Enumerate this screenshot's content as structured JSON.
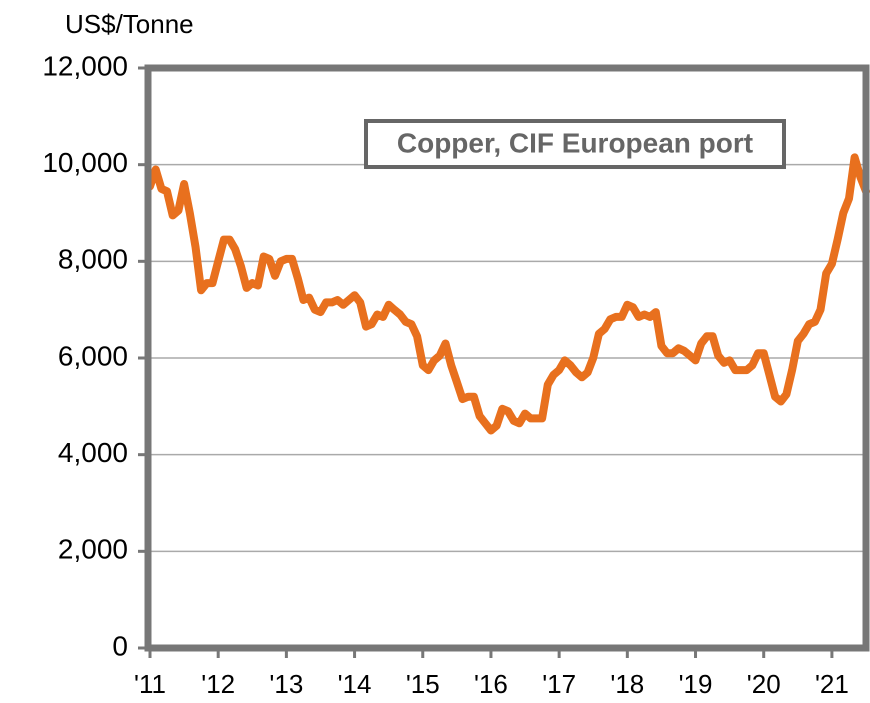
{
  "chart_data": {
    "type": "line",
    "y_axis_label": "US$/Tonne",
    "annotation": "Copper, CIF European port",
    "xlim": [
      2011,
      2021.5
    ],
    "xticks": [
      {
        "value": 2011,
        "label": "'11"
      },
      {
        "value": 2012,
        "label": "'12"
      },
      {
        "value": 2013,
        "label": "'13"
      },
      {
        "value": 2014,
        "label": "'14"
      },
      {
        "value": 2015,
        "label": "'15"
      },
      {
        "value": 2016,
        "label": "'16"
      },
      {
        "value": 2017,
        "label": "'17"
      },
      {
        "value": 2018,
        "label": "'18"
      },
      {
        "value": 2019,
        "label": "'19"
      },
      {
        "value": 2020,
        "label": "'20"
      },
      {
        "value": 2021,
        "label": "'21"
      }
    ],
    "ylim": [
      0,
      12000
    ],
    "yticks": [
      {
        "value": 0,
        "label": "0"
      },
      {
        "value": 2000,
        "label": "2,000"
      },
      {
        "value": 4000,
        "label": "4,000"
      },
      {
        "value": 6000,
        "label": "6,000"
      },
      {
        "value": 8000,
        "label": "8,000"
      },
      {
        "value": 10000,
        "label": "10,000"
      },
      {
        "value": 12000,
        "label": "12,000"
      }
    ],
    "grid": true,
    "x": [
      2011,
      2011.083,
      2011.167,
      2011.25,
      2011.333,
      2011.417,
      2011.5,
      2011.583,
      2011.667,
      2011.75,
      2011.833,
      2011.917,
      2012,
      2012.083,
      2012.167,
      2012.25,
      2012.333,
      2012.417,
      2012.5,
      2012.583,
      2012.667,
      2012.75,
      2012.833,
      2012.917,
      2013,
      2013.083,
      2013.167,
      2013.25,
      2013.333,
      2013.417,
      2013.5,
      2013.583,
      2013.667,
      2013.75,
      2013.833,
      2013.917,
      2014,
      2014.083,
      2014.167,
      2014.25,
      2014.333,
      2014.417,
      2014.5,
      2014.583,
      2014.667,
      2014.75,
      2014.833,
      2014.917,
      2015,
      2015.083,
      2015.167,
      2015.25,
      2015.333,
      2015.417,
      2015.5,
      2015.583,
      2015.667,
      2015.75,
      2015.833,
      2015.917,
      2016,
      2016.083,
      2016.167,
      2016.25,
      2016.333,
      2016.417,
      2016.5,
      2016.583,
      2016.667,
      2016.75,
      2016.833,
      2016.917,
      2017,
      2017.083,
      2017.167,
      2017.25,
      2017.333,
      2017.417,
      2017.5,
      2017.583,
      2017.667,
      2017.75,
      2017.833,
      2017.917,
      2018,
      2018.083,
      2018.167,
      2018.25,
      2018.333,
      2018.417,
      2018.5,
      2018.583,
      2018.667,
      2018.75,
      2018.833,
      2018.917,
      2019,
      2019.083,
      2019.167,
      2019.25,
      2019.333,
      2019.417,
      2019.5,
      2019.583,
      2019.667,
      2019.75,
      2019.833,
      2019.917,
      2020,
      2020.083,
      2020.167,
      2020.25,
      2020.333,
      2020.417,
      2020.5,
      2020.583,
      2020.667,
      2020.75,
      2020.833,
      2020.917,
      2021,
      2021.083,
      2021.167,
      2021.25,
      2021.333,
      2021.417,
      2021.5
    ],
    "series": [
      {
        "name": "Copper, CIF European port",
        "color": "#e8701e",
        "values": [
          9550,
          9900,
          9500,
          9450,
          8950,
          9050,
          9600,
          9000,
          8300,
          7400,
          7550,
          7550,
          8000,
          8450,
          8450,
          8250,
          7900,
          7450,
          7550,
          7500,
          8100,
          8050,
          7700,
          8000,
          8050,
          8050,
          7650,
          7200,
          7250,
          7000,
          6950,
          7150,
          7150,
          7200,
          7100,
          7200,
          7300,
          7150,
          6650,
          6700,
          6900,
          6850,
          7100,
          7000,
          6900,
          6750,
          6700,
          6450,
          5850,
          5750,
          5950,
          6050,
          6300,
          5850,
          5500,
          5150,
          5200,
          5200,
          4800,
          4650,
          4500,
          4600,
          4950,
          4900,
          4700,
          4650,
          4850,
          4750,
          4750,
          4750,
          5450,
          5650,
          5750,
          5950,
          5850,
          5700,
          5600,
          5700,
          6000,
          6500,
          6600,
          6800,
          6850,
          6850,
          7100,
          7050,
          6850,
          6900,
          6850,
          6950,
          6250,
          6100,
          6100,
          6200,
          6150,
          6050,
          5950,
          6300,
          6450,
          6450,
          6050,
          5900,
          5950,
          5750,
          5750,
          5750,
          5850,
          6100,
          6100,
          5650,
          5200,
          5100,
          5250,
          5750,
          6350,
          6500,
          6700,
          6750,
          7000,
          7750,
          7950,
          8450,
          9000,
          9300,
          10150,
          9750,
          9450
        ]
      }
    ]
  }
}
